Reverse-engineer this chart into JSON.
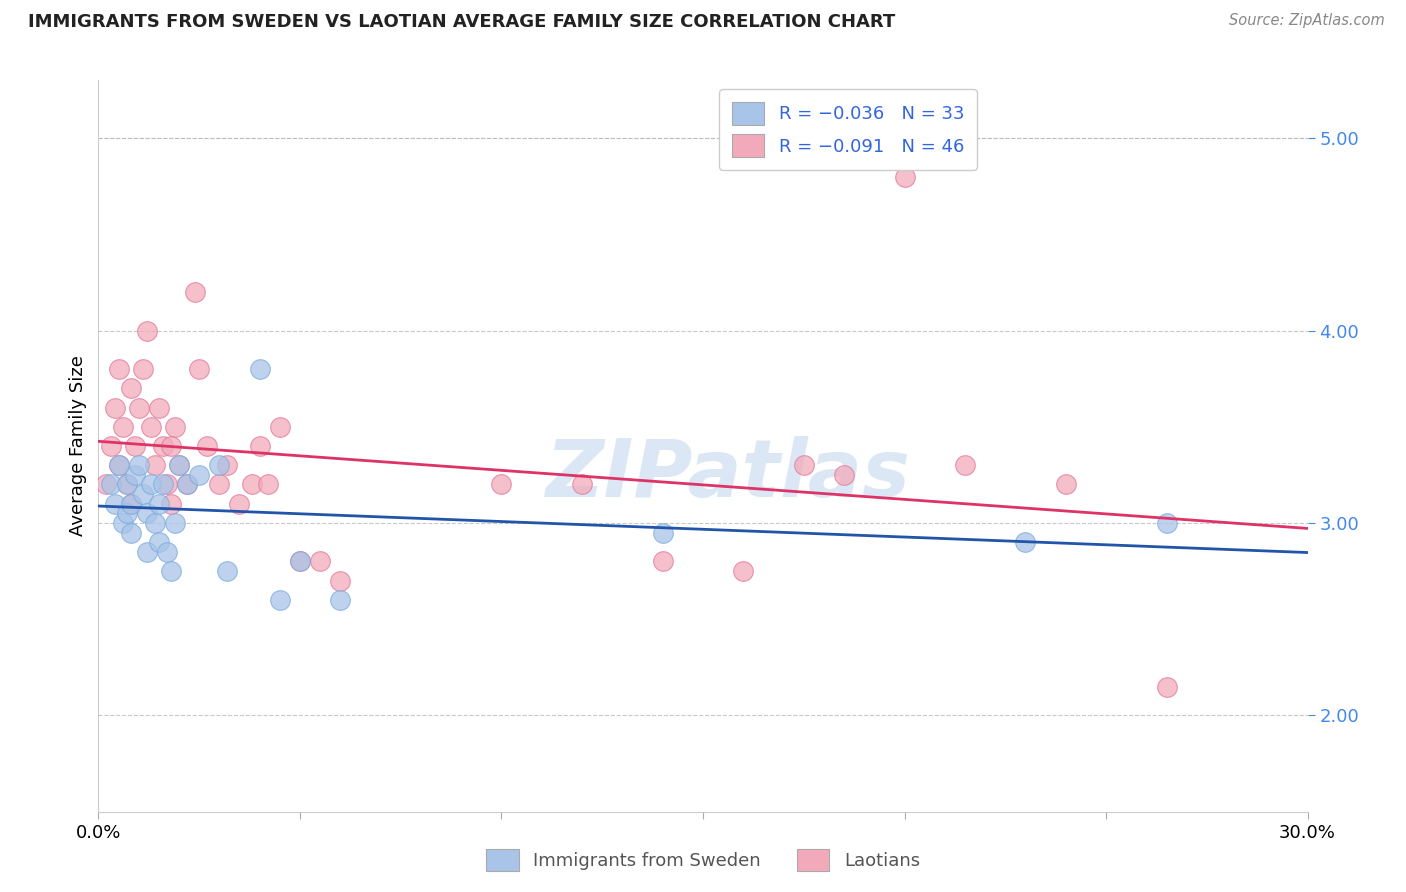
{
  "title": "IMMIGRANTS FROM SWEDEN VS LAOTIAN AVERAGE FAMILY SIZE CORRELATION CHART",
  "source": "Source: ZipAtlas.com",
  "ylabel": "Average Family Size",
  "xmin": 0.0,
  "xmax": 0.3,
  "ymin": 1.5,
  "ymax": 5.3,
  "yticks": [
    2.0,
    3.0,
    4.0,
    5.0
  ],
  "xticks": [
    0.0,
    0.05,
    0.1,
    0.15,
    0.2,
    0.25,
    0.3
  ],
  "watermark": "ZIPatlas",
  "watermark_color": "#C5D8F0",
  "sweden_color": "#A8C4E8",
  "sweden_edge": "#7AABDE",
  "laotian_color": "#F2AABB",
  "laotian_edge": "#E07898",
  "trend_sweden_color": "#2255AA",
  "trend_laotian_color": "#DD3366",
  "sweden_scatter_x": [
    0.003,
    0.004,
    0.005,
    0.006,
    0.007,
    0.007,
    0.008,
    0.008,
    0.009,
    0.01,
    0.011,
    0.012,
    0.012,
    0.013,
    0.014,
    0.015,
    0.015,
    0.016,
    0.017,
    0.018,
    0.019,
    0.02,
    0.022,
    0.025,
    0.03,
    0.032,
    0.04,
    0.045,
    0.05,
    0.06,
    0.14,
    0.23,
    0.265
  ],
  "sweden_scatter_y": [
    3.2,
    3.1,
    3.3,
    3.0,
    3.2,
    3.05,
    3.1,
    2.95,
    3.25,
    3.3,
    3.15,
    3.05,
    2.85,
    3.2,
    3.0,
    3.1,
    2.9,
    3.2,
    2.85,
    2.75,
    3.0,
    3.3,
    3.2,
    3.25,
    3.3,
    2.75,
    3.8,
    2.6,
    2.8,
    2.6,
    2.95,
    2.9,
    3.0
  ],
  "laotian_scatter_x": [
    0.002,
    0.003,
    0.004,
    0.005,
    0.005,
    0.006,
    0.007,
    0.008,
    0.008,
    0.009,
    0.01,
    0.011,
    0.012,
    0.013,
    0.014,
    0.015,
    0.016,
    0.017,
    0.018,
    0.018,
    0.019,
    0.02,
    0.022,
    0.024,
    0.025,
    0.027,
    0.03,
    0.032,
    0.035,
    0.038,
    0.04,
    0.042,
    0.045,
    0.05,
    0.055,
    0.06,
    0.1,
    0.12,
    0.14,
    0.16,
    0.175,
    0.185,
    0.2,
    0.215,
    0.24,
    0.265
  ],
  "laotian_scatter_y": [
    3.2,
    3.4,
    3.6,
    3.8,
    3.3,
    3.5,
    3.2,
    3.1,
    3.7,
    3.4,
    3.6,
    3.8,
    4.0,
    3.5,
    3.3,
    3.6,
    3.4,
    3.2,
    3.4,
    3.1,
    3.5,
    3.3,
    3.2,
    4.2,
    3.8,
    3.4,
    3.2,
    3.3,
    3.1,
    3.2,
    3.4,
    3.2,
    3.5,
    2.8,
    2.8,
    2.7,
    3.2,
    3.2,
    2.8,
    2.75,
    3.3,
    3.25,
    4.8,
    3.3,
    3.2,
    2.15
  ]
}
